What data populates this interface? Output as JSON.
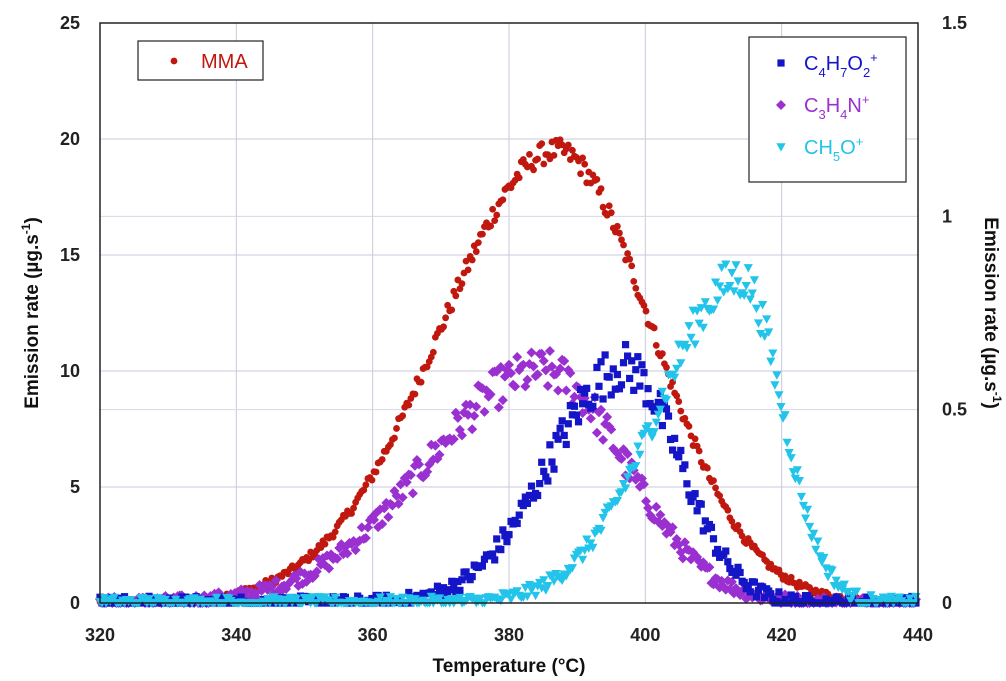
{
  "chart_data": {
    "type": "scatter",
    "title": "",
    "xlabel": "Temperature (°C)",
    "ylabel_left": "Emission rate (µg.s",
    "ylabel_left_sup": "-1",
    "ylabel_left_end": ")",
    "ylabel_right": "Emission rate (µg.s",
    "ylabel_right_sup": "-1",
    "ylabel_right_end": ")",
    "xlim": [
      320,
      440
    ],
    "ylim_left": [
      0,
      25
    ],
    "ylim_right": [
      0,
      1.5
    ],
    "x_ticks": [
      "320",
      "340",
      "360",
      "380",
      "400",
      "420",
      "440"
    ],
    "y_left_ticks": [
      "0",
      "5",
      "10",
      "15",
      "20",
      "25"
    ],
    "y_right_ticks": [
      "0",
      "0.5",
      "1",
      "1.5"
    ],
    "grid": true,
    "legends": {
      "left": {
        "position": "top-left",
        "entries": [
          "MMA"
        ]
      },
      "right": {
        "position": "top-right",
        "entries": [
          {
            "parts": [
              [
                "C",
                ""
              ],
              [
                "4",
                "sub"
              ],
              [
                "H",
                ""
              ],
              [
                "7",
                "sub"
              ],
              [
                "O",
                ""
              ],
              [
                "2",
                "sub"
              ],
              [
                "+",
                "sup"
              ]
            ]
          },
          {
            "parts": [
              [
                "C",
                ""
              ],
              [
                "3",
                "sub"
              ],
              [
                "H",
                ""
              ],
              [
                "4",
                "sub"
              ],
              [
                "N",
                ""
              ],
              [
                "+",
                "sup"
              ]
            ]
          },
          {
            "parts": [
              [
                "CH",
                ""
              ],
              [
                "5",
                "sub"
              ],
              [
                "O",
                ""
              ],
              [
                "+",
                "sup"
              ]
            ]
          }
        ]
      }
    },
    "series": [
      {
        "name": "MMA",
        "axis": "left",
        "marker": "circle",
        "color": "#c0180f",
        "peak_x": 387,
        "peak_y": 19.5,
        "width_left": 17,
        "width_right": 14,
        "jitter": 0.35
      },
      {
        "name": "C4H7O2+",
        "axis": "right",
        "marker": "square",
        "color": "#1515c8",
        "peak_x": 397,
        "peak_y": 0.61,
        "width_left": 11,
        "width_right": 8,
        "jitter": 0.045
      },
      {
        "name": "C3H4N+",
        "axis": "right",
        "marker": "diamond",
        "color": "#9b30d0",
        "peak_x": 385,
        "peak_y": 0.6,
        "width_left": 17,
        "width_right": 12,
        "jitter": 0.04
      },
      {
        "name": "CH5O+",
        "axis": "right",
        "marker": "triangle",
        "color": "#22c4ea",
        "peak_x": 414,
        "peak_y": 0.84,
        "width_left": 12,
        "width_right": 6,
        "jitter": 0.04
      }
    ]
  }
}
